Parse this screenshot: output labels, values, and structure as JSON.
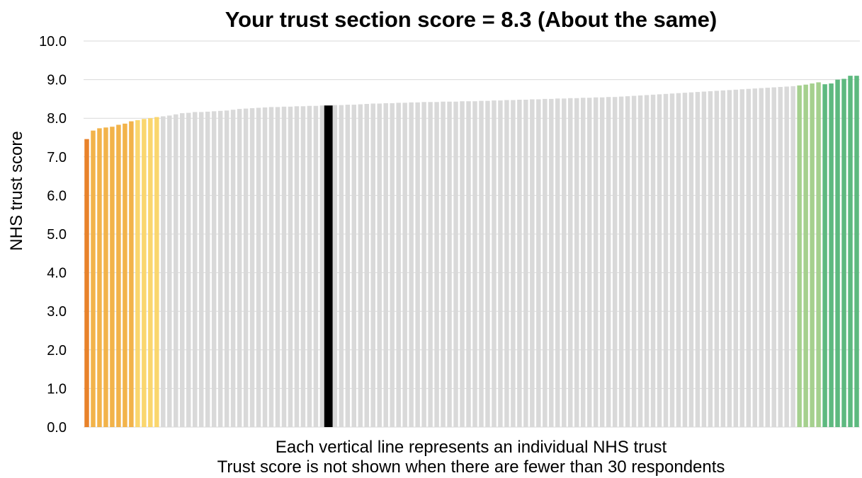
{
  "chart_data": {
    "type": "bar",
    "title": "Your trust section score = 8.3 (About the same)",
    "ylabel": "NHS trust score",
    "xlabel": "",
    "ylim": [
      0,
      10
    ],
    "y_ticks": [
      "0.0",
      "1.0",
      "2.0",
      "3.0",
      "4.0",
      "5.0",
      "6.0",
      "7.0",
      "8.0",
      "9.0",
      "10.0"
    ],
    "grid": true,
    "highlight": {
      "label": "Your trust",
      "value": 8.33,
      "color": "#000000"
    },
    "series": [
      {
        "band": "orange",
        "color": "#E8822A",
        "values": [
          7.46
        ]
      },
      {
        "band": "amber",
        "color": "#F2B34A",
        "values": [
          7.68,
          7.74,
          7.76,
          7.78,
          7.83,
          7.86,
          7.92
        ]
      },
      {
        "band": "yellow",
        "color": "#FAD66E",
        "values": [
          7.95,
          7.98,
          8.0,
          8.03
        ]
      },
      {
        "band": "grey-low",
        "color": "#D9D9D9",
        "values": [
          8.05,
          8.07,
          8.1,
          8.13,
          8.14,
          8.16,
          8.16,
          8.17,
          8.18,
          8.19,
          8.2,
          8.22,
          8.24,
          8.25,
          8.26,
          8.27,
          8.28,
          8.29,
          8.29,
          8.3,
          8.3,
          8.31,
          8.31,
          8.32,
          8.32,
          8.33
        ]
      },
      {
        "band": "your-trust",
        "color": "#000000",
        "values": [
          8.33
        ]
      },
      {
        "band": "grey-high",
        "color": "#D9D9D9",
        "values": [
          8.34,
          8.34,
          8.35,
          8.35,
          8.36,
          8.37,
          8.38,
          8.38,
          8.39,
          8.39,
          8.4,
          8.4,
          8.41,
          8.41,
          8.42,
          8.42,
          8.42,
          8.43,
          8.43,
          8.43,
          8.44,
          8.44,
          8.44,
          8.45,
          8.45,
          8.46,
          8.46,
          8.47,
          8.47,
          8.48,
          8.48,
          8.49,
          8.49,
          8.5,
          8.5,
          8.51,
          8.51,
          8.52,
          8.52,
          8.53,
          8.53,
          8.54,
          8.54,
          8.55,
          8.55,
          8.56,
          8.57,
          8.58,
          8.59,
          8.6,
          8.61,
          8.62,
          8.63,
          8.64,
          8.65,
          8.66,
          8.67,
          8.68,
          8.69,
          8.7,
          8.71,
          8.72,
          8.73,
          8.74,
          8.75,
          8.76,
          8.77,
          8.78,
          8.79,
          8.8,
          8.81,
          8.82,
          8.83
        ]
      },
      {
        "band": "light-green",
        "color": "#A5D08E",
        "values": [
          8.85,
          8.87,
          8.9,
          8.93
        ]
      },
      {
        "band": "green",
        "color": "#5DB97F",
        "values": [
          8.88,
          8.9,
          9.0,
          9.02,
          9.1,
          9.1
        ]
      }
    ]
  },
  "footnotes": {
    "line1": "Each vertical line represents an individual NHS trust",
    "line2": "Trust score is not shown when there are fewer than 30 respondents"
  }
}
